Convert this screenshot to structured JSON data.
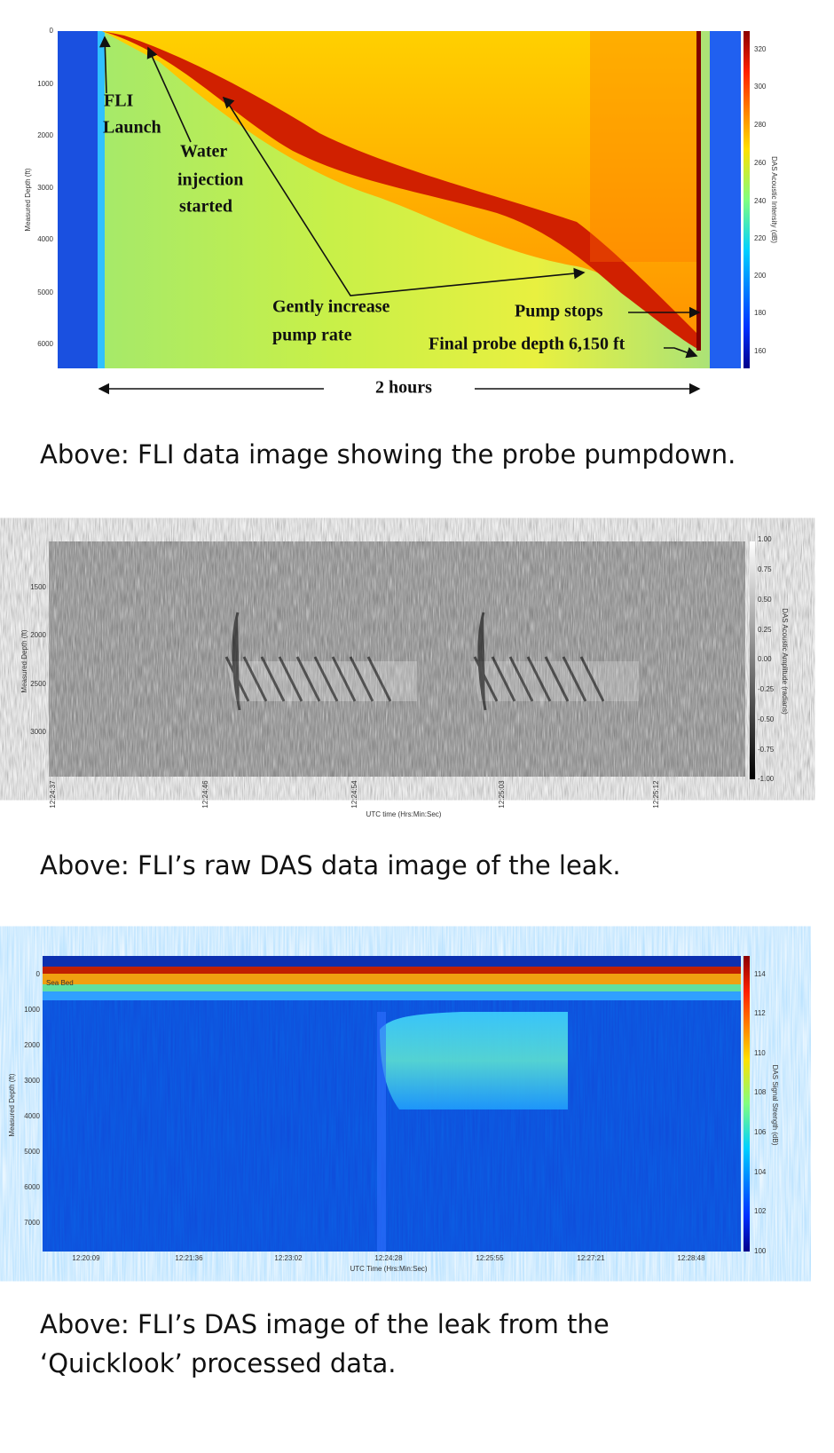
{
  "figures": [
    {
      "y_axis_label": "Measured Depth (ft)",
      "y_ticks": [
        "0",
        "1000",
        "2000",
        "3000",
        "4000",
        "5000",
        "6000"
      ],
      "colorbar_label": "DAS Acoustic Intensity (dB)",
      "colorbar_ticks": [
        "320",
        "300",
        "280",
        "260",
        "240",
        "220",
        "200",
        "180",
        "160"
      ],
      "annotations": [
        "FLI",
        "Launch",
        "Water",
        "injection",
        "started",
        "Gently increase",
        "pump rate",
        "Pump stops",
        "Final probe depth 6,150 ft"
      ],
      "duration_label": "2 hours",
      "caption": "Above: FLI data image showing the probe pumpdown."
    },
    {
      "y_axis_label": "Measured Depth (ft)",
      "y_ticks": [
        "1500",
        "2000",
        "2500",
        "3000"
      ],
      "x_axis_label": "UTC time (Hrs:Min:Sec)",
      "x_ticks": [
        "12:24:37",
        "12:24:46",
        "12:24:54",
        "12:25:03",
        "12:25:12"
      ],
      "colorbar_label": "DAS Acoustic Amplitude (radians)",
      "colorbar_ticks": [
        "1.00",
        "0.75",
        "0.50",
        "0.25",
        "0.00",
        "-0.25",
        "-0.50",
        "-0.75",
        "-1.00"
      ],
      "caption": "Above: FLI’s raw DAS data image of the leak."
    },
    {
      "y_axis_label": "Measured Depth (ft)",
      "y_ticks": [
        "0",
        "1000",
        "2000",
        "3000",
        "4000",
        "5000",
        "6000",
        "7000"
      ],
      "x_axis_label": "UTC Time (Hrs:Min:Sec)",
      "x_ticks": [
        "12:20:09",
        "12:21:36",
        "12:23:02",
        "12:24:28",
        "12:25:55",
        "12:27:21",
        "12:28:48"
      ],
      "colorbar_label": "DAS Signal Strength (dB)",
      "colorbar_ticks": [
        "114",
        "112",
        "110",
        "108",
        "106",
        "104",
        "102",
        "100"
      ],
      "annotations": [
        "Sea Bed"
      ],
      "caption": "Above: FLI’s DAS image of the leak from the ‘Quicklook’ processed data."
    }
  ]
}
